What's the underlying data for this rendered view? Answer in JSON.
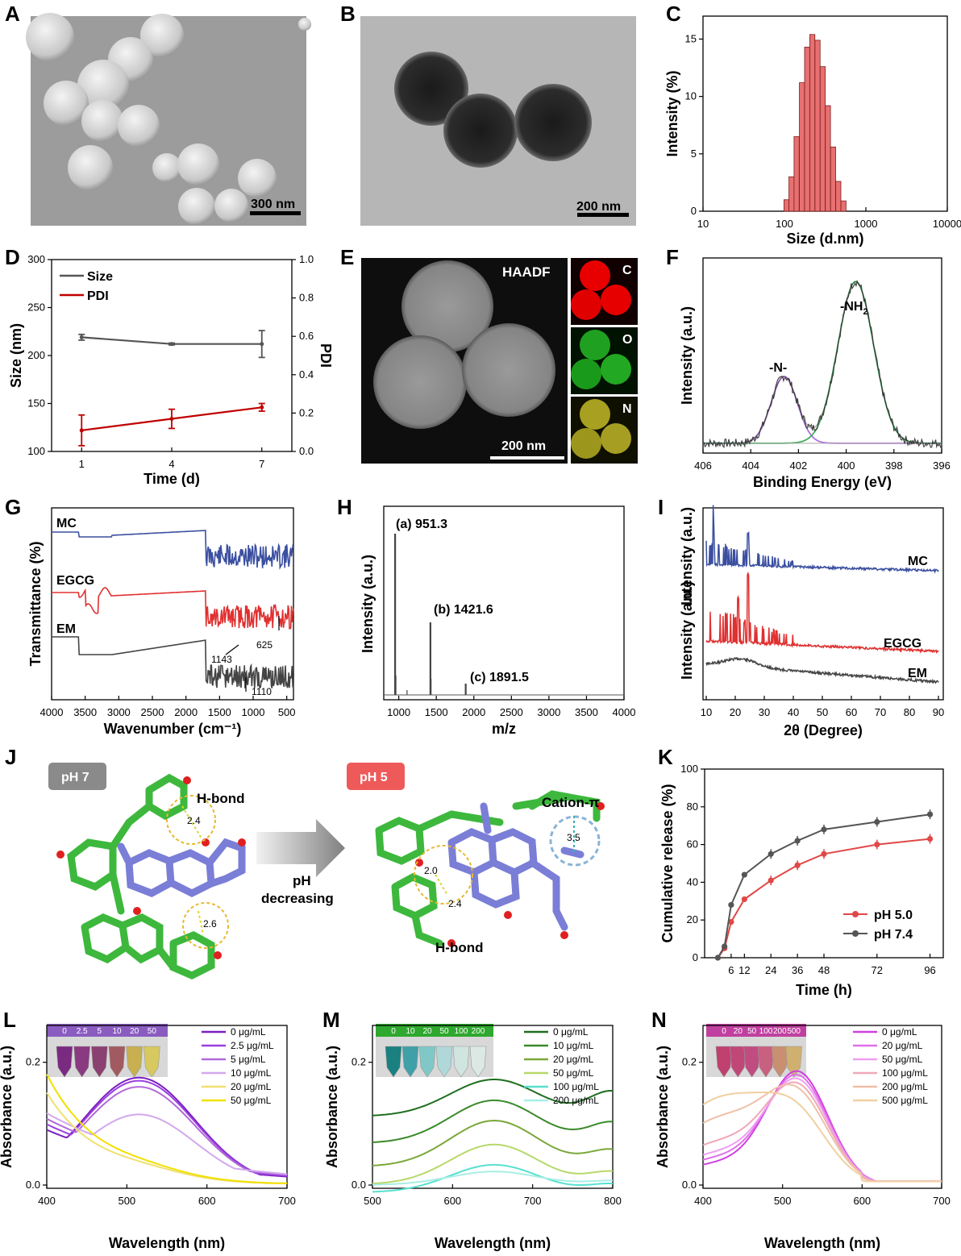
{
  "panels": {
    "A": {
      "label": "A",
      "scale": "300 nm"
    },
    "B": {
      "label": "B",
      "scale": "200 nm"
    },
    "C": {
      "label": "C"
    },
    "D": {
      "label": "D"
    },
    "E": {
      "label": "E",
      "haadf": "HAADF",
      "scale": "200 nm",
      "maps": [
        "C",
        "O",
        "N"
      ]
    },
    "F": {
      "label": "F",
      "peak1": "-N-",
      "peak2": "-NH",
      "peak2_sub": "2"
    },
    "G": {
      "label": "G",
      "curves": [
        "MC",
        "EGCG",
        "EM"
      ],
      "marks": [
        "1143",
        "625",
        "1110"
      ]
    },
    "H": {
      "label": "H",
      "peaks": [
        "(a) 951.3",
        "(b) 1421.6",
        "(c) 1891.5"
      ]
    },
    "I": {
      "label": "I",
      "curves": [
        "MC",
        "EGCG",
        "EM"
      ]
    },
    "J": {
      "label": "J",
      "ph_left": "pH 7",
      "ph_right": "pH 5",
      "hbond": "H-bond",
      "hbond2": "H-bond",
      "cation": "Cation-π",
      "arrow1": "pH",
      "arrow2": "decreasing",
      "d1": "2.4",
      "d2": "2.6",
      "d3": "2.0",
      "d4": "2.4",
      "d5": "3.5"
    },
    "K": {
      "label": "K"
    },
    "L": {
      "label": "L",
      "conc": [
        "0",
        "2.5",
        "5",
        "10",
        "20",
        "50"
      ]
    },
    "M": {
      "label": "M",
      "conc": [
        "0",
        "10",
        "20",
        "50",
        "100",
        "200"
      ]
    },
    "N": {
      "label": "N",
      "conc": [
        "0",
        "20",
        "50",
        "100",
        "200",
        "500"
      ]
    }
  },
  "chart_data": [
    {
      "id": "C",
      "type": "bar",
      "xlabel": "Size (d.nm)",
      "ylabel": "Intensity (%)",
      "xscale": "log",
      "xlim": [
        10,
        10000
      ],
      "ylim": [
        0,
        17
      ],
      "xticks": [
        "10",
        "100",
        "1000",
        "10000"
      ],
      "yticks": [
        "0",
        "5",
        "10",
        "15"
      ],
      "x": [
        106,
        122,
        141,
        164,
        190,
        220,
        255,
        295,
        342,
        396,
        459,
        531
      ],
      "values": [
        1.0,
        3.0,
        6.5,
        11.2,
        14.3,
        15.4,
        14.9,
        12.6,
        9.2,
        5.6,
        2.6,
        0.9
      ]
    },
    {
      "id": "D",
      "type": "line",
      "xlabel": "Time (d)",
      "ylabel": "Size (nm)",
      "y2label": "PDI",
      "ylim": [
        100,
        300
      ],
      "y2lim": [
        0,
        1.0
      ],
      "xticks": [
        "1",
        "4",
        "7"
      ],
      "yticks": [
        "100",
        "150",
        "200",
        "250",
        "300"
      ],
      "y2ticks": [
        "0.0",
        "0.2",
        "0.4",
        "0.6",
        "0.8",
        "1.0"
      ],
      "series": [
        {
          "name": "Size",
          "axis": "left",
          "x": [
            1,
            4,
            7
          ],
          "values": [
            219,
            212,
            212
          ],
          "err": [
            3,
            1,
            14
          ],
          "color": "#555555"
        },
        {
          "name": "PDI",
          "axis": "right",
          "x": [
            1,
            4,
            7
          ],
          "values": [
            0.11,
            0.17,
            0.23
          ],
          "err": [
            0.08,
            0.05,
            0.02
          ],
          "color": "#c00000"
        }
      ]
    },
    {
      "id": "F",
      "type": "line",
      "xlabel": "Binding Energy (eV)",
      "ylabel": "Intensity (a.u.)",
      "xlim": [
        406,
        396
      ],
      "xticks": [
        "406",
        "404",
        "402",
        "400",
        "398",
        "396"
      ],
      "peaks": [
        {
          "center": 402.6,
          "height": 0.38,
          "sigma": 0.55,
          "color": "#b070e0"
        },
        {
          "center": 399.6,
          "height": 0.92,
          "sigma": 0.75,
          "color": "#40b060"
        }
      ]
    },
    {
      "id": "G",
      "type": "line",
      "xlabel": "Wavenumber (cm⁻¹)",
      "ylabel": "Transmittance (%)",
      "xlim": [
        4000,
        400
      ],
      "xticks": [
        "4000",
        "3500",
        "3000",
        "2500",
        "2000",
        "1500",
        "1000",
        "500"
      ],
      "series": [
        {
          "name": "MC",
          "color": "#3b4fa0"
        },
        {
          "name": "EGCG",
          "color": "#e03030"
        },
        {
          "name": "EM",
          "color": "#444444"
        }
      ]
    },
    {
      "id": "H",
      "type": "bar",
      "xlabel": "m/z",
      "ylabel": "Intensity (a.u.)",
      "xlim": [
        800,
        4000
      ],
      "xticks": [
        "1000",
        "1500",
        "2000",
        "2500",
        "3000",
        "3500",
        "4000"
      ],
      "x": [
        951.3,
        1421.6,
        1891.5
      ],
      "values": [
        1.0,
        0.45,
        0.07
      ]
    },
    {
      "id": "I",
      "type": "line",
      "xlabel": "2θ (Degree)",
      "ylabel": "Intensity (a.u.)",
      "xlim": [
        10,
        90
      ],
      "xticks": [
        "10",
        "20",
        "30",
        "40",
        "50",
        "60",
        "70",
        "80",
        "90"
      ],
      "series": [
        {
          "name": "MC",
          "color": "#3b4fa0"
        },
        {
          "name": "EGCG",
          "color": "#e03030"
        },
        {
          "name": "EM",
          "color": "#444444"
        }
      ]
    },
    {
      "id": "K",
      "type": "line",
      "xlabel": "Time (h)",
      "ylabel": "Cumulative release (%)",
      "ylim": [
        0,
        100
      ],
      "xticks": [
        "6",
        "12",
        "24",
        "36",
        "48",
        "72",
        "96"
      ],
      "yticks": [
        "0",
        "20",
        "40",
        "60",
        "80",
        "100"
      ],
      "series": [
        {
          "name": "pH 5.0",
          "color": "#e04848",
          "x": [
            0,
            3,
            6,
            12,
            24,
            36,
            48,
            72,
            96
          ],
          "values": [
            0,
            5,
            19,
            31,
            41,
            49,
            55,
            60,
            63
          ]
        },
        {
          "name": "pH 7.4",
          "color": "#555555",
          "x": [
            0,
            3,
            6,
            12,
            24,
            36,
            48,
            72,
            96
          ],
          "values": [
            0,
            6,
            28,
            44,
            55,
            62,
            68,
            72,
            76
          ]
        }
      ]
    },
    {
      "id": "L",
      "type": "line",
      "xlabel": "Wavelength (nm)",
      "ylabel": "Absorbance (a.u.)",
      "xlim": [
        400,
        700
      ],
      "ylim": [
        0,
        0.26
      ],
      "xticks": [
        "400",
        "500",
        "600",
        "700"
      ],
      "yticks": [
        "0.0",
        "0.2"
      ],
      "series": [
        {
          "name": "0 μg/mL",
          "color": "#7a1fc0"
        },
        {
          "name": "2.5 μg/mL",
          "color": "#9a3ee0"
        },
        {
          "name": "5 μg/mL",
          "color": "#b06ad8"
        },
        {
          "name": "10 μg/mL",
          "color": "#d2a8ee"
        },
        {
          "name": "20 μg/mL",
          "color": "#f0e070"
        },
        {
          "name": "50 μg/mL",
          "color": "#f0e000"
        }
      ]
    },
    {
      "id": "M",
      "type": "line",
      "xlabel": "Wavelength (nm)",
      "ylabel": "Absorbance (a.u.)",
      "xlim": [
        500,
        800
      ],
      "ylim": [
        0,
        0.26
      ],
      "xticks": [
        "500",
        "600",
        "700",
        "800"
      ],
      "yticks": [
        "0.0",
        "0.2"
      ],
      "series": [
        {
          "name": "0 μg/mL",
          "color": "#1f6e1f"
        },
        {
          "name": "10 μg/mL",
          "color": "#3a8a2a"
        },
        {
          "name": "20 μg/mL",
          "color": "#7aa83a"
        },
        {
          "name": "50 μg/mL",
          "color": "#b8d86a"
        },
        {
          "name": "100 μg/mL",
          "color": "#58e0d0"
        },
        {
          "name": "200 μg/mL",
          "color": "#a8eee4"
        }
      ]
    },
    {
      "id": "N",
      "type": "line",
      "xlabel": "Wavelength (nm)",
      "ylabel": "Absorbance (a.u.)",
      "xlim": [
        400,
        700
      ],
      "ylim": [
        0,
        0.26
      ],
      "xticks": [
        "400",
        "500",
        "600",
        "700"
      ],
      "yticks": [
        "0.0",
        "0.2"
      ],
      "series": [
        {
          "name": "0 μg/mL",
          "color": "#d040e0"
        },
        {
          "name": "20 μg/mL",
          "color": "#e070ea"
        },
        {
          "name": "50 μg/mL",
          "color": "#ef9ef2"
        },
        {
          "name": "100 μg/mL",
          "color": "#f0a8b8"
        },
        {
          "name": "200 μg/mL",
          "color": "#f0c0a8"
        },
        {
          "name": "500 μg/mL",
          "color": "#f0d0a0"
        }
      ]
    }
  ]
}
